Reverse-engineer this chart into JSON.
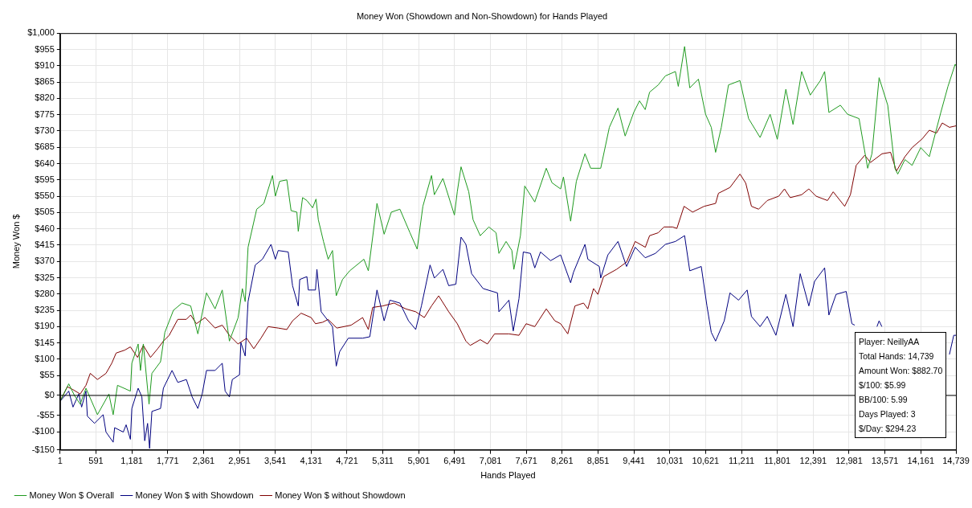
{
  "chart_data": {
    "type": "line",
    "title": "Money Won (Showdown and Non-Showdown) for Hands Played",
    "xlabel": "Hands Played",
    "ylabel": "Money Won $",
    "xlim": [
      1,
      14739
    ],
    "xticks": [
      1,
      591,
      {
        "value": 1181,
        "label": "1,181"
      },
      {
        "value": 1771,
        "label": "1,771"
      },
      {
        "value": 2361,
        "label": "2,361"
      },
      {
        "value": 2951,
        "label": "2,951"
      },
      {
        "value": 3541,
        "label": "3,541"
      },
      {
        "value": 4131,
        "label": "4,131"
      },
      {
        "value": 4721,
        "label": "4,721"
      },
      {
        "value": 5311,
        "label": "5,311"
      },
      {
        "value": 5901,
        "label": "5,901"
      },
      {
        "value": 6491,
        "label": "6,491"
      },
      {
        "value": 7081,
        "label": "7,081"
      },
      {
        "value": 7671,
        "label": "7,671"
      },
      {
        "value": 8261,
        "label": "8,261"
      },
      {
        "value": 8851,
        "label": "8,851"
      },
      {
        "value": 9441,
        "label": "9,441"
      },
      {
        "value": 10031,
        "label": "10,031"
      },
      {
        "value": 10621,
        "label": "10,621"
      },
      {
        "value": 11211,
        "label": "11,211"
      },
      {
        "value": 11801,
        "label": "11,801"
      },
      {
        "value": 12391,
        "label": "12,391"
      },
      {
        "value": 12981,
        "label": "12,981"
      },
      {
        "value": 13571,
        "label": "13,571"
      },
      {
        "value": 14161,
        "label": "14,161"
      },
      {
        "value": 14739,
        "label": "14,739"
      }
    ],
    "ylim": [
      -150,
      1000
    ],
    "yticks": [
      {
        "value": -150,
        "label": "-$150"
      },
      {
        "value": -100,
        "label": "-$100"
      },
      {
        "value": -55,
        "label": "-$55"
      },
      {
        "value": 0,
        "label": "$0"
      },
      {
        "value": 55,
        "label": "$55"
      },
      {
        "value": 100,
        "label": "$100"
      },
      {
        "value": 145,
        "label": "$145"
      },
      {
        "value": 190,
        "label": "$190"
      },
      {
        "value": 235,
        "label": "$235"
      },
      {
        "value": 280,
        "label": "$280"
      },
      {
        "value": 325,
        "label": "$325"
      },
      {
        "value": 370,
        "label": "$370"
      },
      {
        "value": 415,
        "label": "$415"
      },
      {
        "value": 460,
        "label": "$460"
      },
      {
        "value": 505,
        "label": "$505"
      },
      {
        "value": 550,
        "label": "$550"
      },
      {
        "value": 595,
        "label": "$595"
      },
      {
        "value": 640,
        "label": "$640"
      },
      {
        "value": 685,
        "label": "$685"
      },
      {
        "value": 730,
        "label": "$730"
      },
      {
        "value": 775,
        "label": "$775"
      },
      {
        "value": 820,
        "label": "$820"
      },
      {
        "value": 865,
        "label": "$865"
      },
      {
        "value": 910,
        "label": "$910"
      },
      {
        "value": 955,
        "label": "$955"
      },
      {
        "value": 1000,
        "label": "$1,000"
      }
    ],
    "grid": true,
    "legend": "bottom left",
    "marker": "none",
    "line_style": "solid",
    "ref_lines": [
      {
        "axis": "y",
        "value": 0,
        "color": "#000000"
      }
    ],
    "annotations": [
      "Player: NeillyAA",
      "Total Hands: 14,739",
      "Amount Won: $882.70",
      "$/100: $5.99",
      "BB/100: 5.99",
      "Days Played: 3",
      "$/Day: $294.23"
    ],
    "series": [
      {
        "name": "Money Won $ Overall",
        "color": "#1f9a1f",
        "x": [
          1,
          143,
          237,
          331,
          426,
          615,
          804,
          874,
          945,
          1157,
          1181,
          1285,
          1323,
          1370,
          1464,
          1511,
          1653,
          1724,
          1865,
          2007,
          2149,
          2267,
          2409,
          2550,
          2668,
          2786,
          2928,
          2999,
          3046,
          3093,
          3235,
          3353,
          3495,
          3542,
          3613,
          3731,
          3801,
          3896,
          3919,
          3990,
          4061,
          4155,
          4211,
          4249,
          4334,
          4411,
          4482,
          4544,
          4647,
          4765,
          4999,
          5072,
          5214,
          5332,
          5450,
          5591,
          5757,
          5875,
          5969,
          6111,
          6158,
          6299,
          6488,
          6535,
          6597,
          6724,
          6795,
          6913,
          7055,
          7173,
          7220,
          7338,
          7433,
          7466,
          7574,
          7645,
          7810,
          7999,
          8093,
          8235,
          8282,
          8400,
          8494,
          8636,
          8730,
          8895,
          9037,
          9179,
          9297,
          9438,
          9533,
          9627,
          9699,
          9841,
          9959,
          10124,
          10171,
          10275,
          10360,
          10502,
          10620,
          10714,
          10785,
          10879,
          10997,
          11186,
          11328,
          11517,
          11682,
          11800,
          11941,
          12059,
          12201,
          12343,
          12508,
          12579,
          12649,
          12838,
          12956,
          13145,
          13287,
          13357,
          13475,
          13617,
          13735,
          13782,
          13900,
          14018,
          14160,
          14301,
          14490,
          14608,
          14726,
          14739
        ],
        "values": [
          -16,
          32,
          0,
          -24,
          20,
          -53,
          4,
          -53,
          28,
          12,
          89,
          142,
          69,
          142,
          -24,
          61,
          93,
          174,
          235,
          255,
          247,
          170,
          283,
          239,
          291,
          150,
          214,
          295,
          259,
          409,
          514,
          530,
          607,
          550,
          591,
          595,
          510,
          506,
          453,
          546,
          538,
          518,
          542,
          485,
          425,
          376,
          400,
          275,
          320,
          344,
          376,
          344,
          530,
          445,
          506,
          514,
          449,
          404,
          522,
          607,
          554,
          599,
          498,
          562,
          631,
          562,
          485,
          441,
          465,
          449,
          392,
          425,
          400,
          348,
          441,
          578,
          534,
          627,
          587,
          570,
          603,
          481,
          591,
          667,
          627,
          627,
          740,
          793,
          716,
          781,
          813,
          789,
          837,
          857,
          882,
          894,
          853,
          963,
          849,
          873,
          776,
          740,
          671,
          740,
          857,
          869,
          764,
          712,
          776,
          707,
          845,
          748,
          894,
          829,
          869,
          894,
          781,
          801,
          776,
          764,
          627,
          667,
          877,
          801,
          627,
          611,
          651,
          635,
          684,
          659,
          781,
          853,
          914,
          910
        ]
      },
      {
        "name": "Money Won $ with Showdown",
        "color": "#00007f",
        "x": [
          1,
          143,
          213,
          308,
          355,
          426,
          449,
          567,
          709,
          756,
          874,
          898,
          1040,
          1087,
          1157,
          1181,
          1285,
          1346,
          1393,
          1440,
          1473,
          1511,
          1653,
          1700,
          1842,
          1937,
          2078,
          2173,
          2267,
          2338,
          2409,
          2550,
          2668,
          2716,
          2786,
          2834,
          2952,
          2975,
          3046,
          3093,
          3211,
          3329,
          3471,
          3542,
          3589,
          3754,
          3825,
          3919,
          3943,
          4061,
          4084,
          4202,
          4226,
          4296,
          4411,
          4482,
          4544,
          4600,
          4742,
          4978,
          5096,
          5214,
          5332,
          5426,
          5591,
          5733,
          5851,
          5945,
          6087,
          6158,
          6299,
          6394,
          6512,
          6597,
          6677,
          6771,
          6960,
          7196,
          7220,
          7385,
          7456,
          7550,
          7621,
          7739,
          7810,
          7904,
          8070,
          8235,
          8400,
          8447,
          8636,
          8683,
          8872,
          8895,
          9013,
          9179,
          9320,
          9462,
          9627,
          9794,
          9959,
          10124,
          10275,
          10360,
          10549,
          10643,
          10714,
          10785,
          10927,
          11021,
          11163,
          11304,
          11375,
          11517,
          11635,
          11777,
          11941,
          12059,
          12177,
          12319,
          12413,
          12579,
          12649,
          12767,
          12933,
          13027,
          13074,
          13250,
          13440,
          13475,
          13520,
          14000,
          14632,
          14703,
          14739
        ],
        "values": [
          -16,
          12,
          -32,
          4,
          -32,
          12,
          -57,
          -77,
          -53,
          -101,
          -129,
          -89,
          -101,
          -81,
          -121,
          -36,
          20,
          -4,
          -125,
          -77,
          -146,
          -44,
          -36,
          20,
          69,
          36,
          44,
          -4,
          -36,
          4,
          69,
          69,
          89,
          12,
          -4,
          44,
          57,
          146,
          109,
          259,
          360,
          376,
          417,
          376,
          400,
          396,
          303,
          247,
          320,
          328,
          291,
          291,
          348,
          231,
          206,
          190,
          81,
          121,
          158,
          158,
          162,
          291,
          206,
          263,
          255,
          206,
          182,
          247,
          360,
          324,
          348,
          303,
          307,
          437,
          417,
          336,
          295,
          283,
          231,
          263,
          178,
          267,
          396,
          392,
          352,
          396,
          372,
          388,
          311,
          340,
          417,
          376,
          356,
          324,
          388,
          425,
          356,
          409,
          380,
          392,
          417,
          425,
          441,
          344,
          356,
          247,
          174,
          150,
          206,
          283,
          263,
          291,
          218,
          190,
          218,
          166,
          279,
          190,
          336,
          247,
          315,
          352,
          222,
          279,
          287,
          198,
          194,
          null,
          190,
          206,
          190,
          null,
          113,
          166,
          166
        ]
      },
      {
        "name": "Money Won $ without Showdown",
        "color": "#7f0000",
        "x": [
          1,
          119,
          213,
          331,
          426,
          497,
          615,
          756,
          851,
          922,
          1063,
          1157,
          1275,
          1370,
          1488,
          1606,
          1700,
          1795,
          1937,
          2078,
          2149,
          2243,
          2385,
          2550,
          2668,
          2786,
          2928,
          3069,
          3187,
          3305,
          3423,
          3589,
          3731,
          3825,
          3966,
          4131,
          4202,
          4320,
          4411,
          4553,
          4789,
          4978,
          5072,
          5143,
          5308,
          5497,
          5686,
          5851,
          5993,
          6111,
          6229,
          6394,
          6535,
          6677,
          6748,
          6913,
          7031,
          7149,
          7385,
          7550,
          7668,
          7810,
          7999,
          8140,
          8235,
          8353,
          8471,
          8612,
          8683,
          8777,
          8848,
          8942,
          9155,
          9320,
          9462,
          9629,
          9699,
          9841,
          9935,
          10077,
          10148,
          10266,
          10407,
          10596,
          10785,
          10832,
          11021,
          11186,
          11281,
          11375,
          11493,
          11635,
          11824,
          11918,
          12012,
          12201,
          12319,
          12437,
          12626,
          12720,
          12909,
          13003,
          13098,
          13239,
          13333,
          13523,
          13664,
          13759,
          13900,
          14018,
          14183,
          14301,
          14419,
          14514,
          14632,
          14739
        ],
        "values": [
          -16,
          24,
          16,
          4,
          28,
          61,
          44,
          61,
          89,
          117,
          125,
          134,
          105,
          138,
          105,
          129,
          150,
          166,
          210,
          210,
          222,
          198,
          215,
          186,
          194,
          166,
          142,
          158,
          129,
          158,
          190,
          186,
          182,
          206,
          227,
          215,
          198,
          202,
          210,
          186,
          194,
          215,
          182,
          243,
          247,
          255,
          239,
          231,
          215,
          247,
          275,
          231,
          198,
          150,
          138,
          154,
          142,
          170,
          170,
          166,
          198,
          190,
          239,
          206,
          198,
          170,
          247,
          255,
          239,
          295,
          279,
          328,
          348,
          368,
          425,
          409,
          441,
          449,
          465,
          465,
          461,
          522,
          506,
          522,
          530,
          558,
          574,
          611,
          586,
          522,
          514,
          538,
          550,
          570,
          546,
          554,
          570,
          550,
          538,
          562,
          522,
          554,
          635,
          663,
          643,
          667,
          671,
          619,
          659,
          684,
          708,
          732,
          724,
          752,
          740,
          744
        ]
      }
    ]
  }
}
